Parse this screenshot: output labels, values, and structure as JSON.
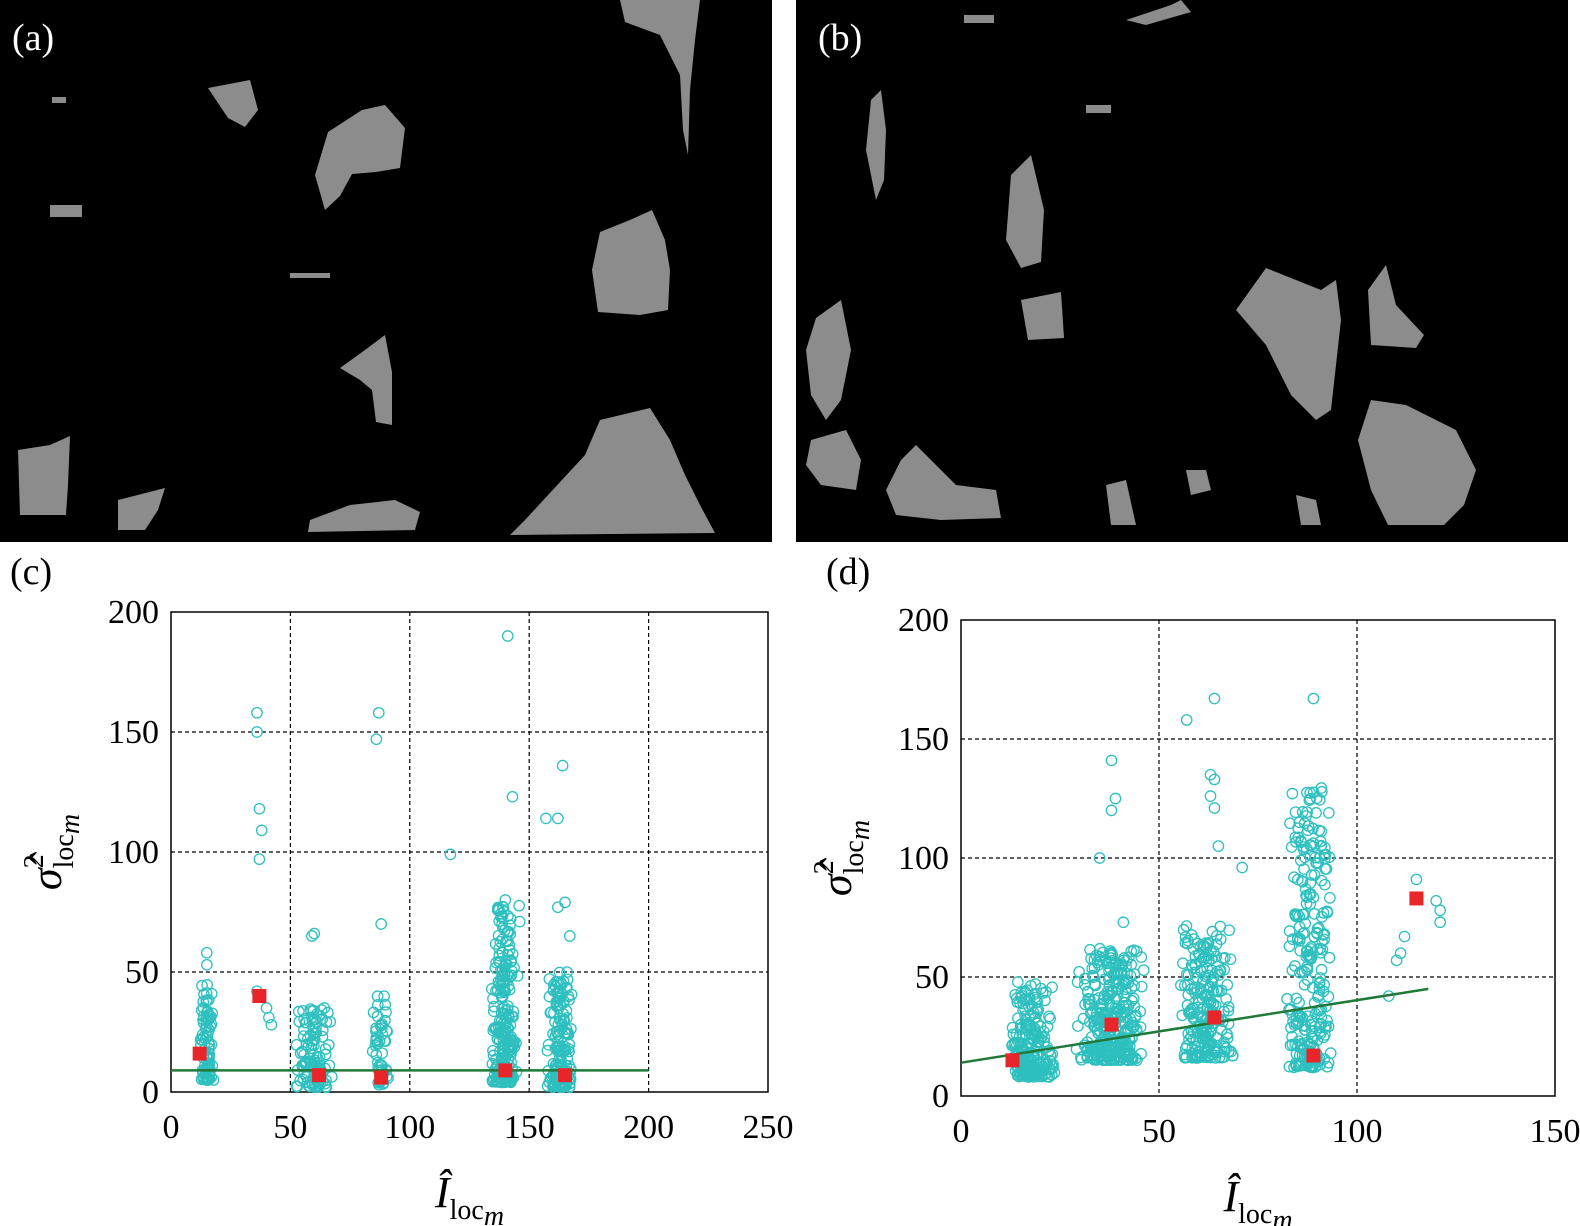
{
  "panels": {
    "a": {
      "label": "(a)"
    },
    "b": {
      "label": "(b)"
    },
    "c": {
      "label": "(c)"
    },
    "d": {
      "label": "(d)"
    }
  },
  "colors": {
    "background": "#000000",
    "region": "#8c8c8c",
    "points": "#2ebfbf",
    "means": "#e8262a",
    "fit": "#1f7a3a",
    "grid": "#000000"
  },
  "chart_data": [
    {
      "type": "scatter",
      "panel": "(c)",
      "xlabel_main": "Î",
      "xlabel_sub": "loc",
      "xlabel_subsub": "m",
      "ylabel_main": "σ̂",
      "ylabel_sup": "2",
      "ylabel_sub": "loc",
      "ylabel_subsub": "m",
      "xlim": [
        0,
        250
      ],
      "ylim": [
        0,
        200
      ],
      "xticks": [
        0,
        50,
        100,
        150,
        200,
        250
      ],
      "yticks": [
        0,
        50,
        100,
        150,
        200
      ],
      "grid": true,
      "clusters": [
        {
          "x_center": 15,
          "x_spread": 3,
          "y_min": 5,
          "y_max": 45,
          "count": 80
        },
        {
          "x_center": 60,
          "x_spread": 8,
          "y_min": 2,
          "y_max": 35,
          "count": 110
        },
        {
          "x_center": 88,
          "x_spread": 4,
          "y_min": 3,
          "y_max": 40,
          "count": 50
        },
        {
          "x_center": 140,
          "x_spread": 6,
          "y_min": 4,
          "y_max": 78,
          "count": 230
        },
        {
          "x_center": 163,
          "x_spread": 6,
          "y_min": 2,
          "y_max": 50,
          "count": 170
        }
      ],
      "outliers": [
        {
          "x": 15,
          "y": 58
        },
        {
          "x": 15,
          "y": 53
        },
        {
          "x": 36,
          "y": 158
        },
        {
          "x": 36,
          "y": 150
        },
        {
          "x": 37,
          "y": 118
        },
        {
          "x": 38,
          "y": 109
        },
        {
          "x": 37,
          "y": 97
        },
        {
          "x": 36,
          "y": 42
        },
        {
          "x": 40,
          "y": 35
        },
        {
          "x": 41,
          "y": 31
        },
        {
          "x": 42,
          "y": 28
        },
        {
          "x": 59,
          "y": 65
        },
        {
          "x": 60,
          "y": 66
        },
        {
          "x": 87,
          "y": 158
        },
        {
          "x": 86,
          "y": 147
        },
        {
          "x": 88,
          "y": 70
        },
        {
          "x": 117,
          "y": 99
        },
        {
          "x": 141,
          "y": 190
        },
        {
          "x": 143,
          "y": 123
        },
        {
          "x": 140,
          "y": 80
        },
        {
          "x": 146,
          "y": 71
        },
        {
          "x": 157,
          "y": 114
        },
        {
          "x": 162,
          "y": 114
        },
        {
          "x": 164,
          "y": 136
        },
        {
          "x": 162,
          "y": 77
        },
        {
          "x": 165,
          "y": 79
        },
        {
          "x": 167,
          "y": 65
        }
      ],
      "means": [
        {
          "x": 12,
          "y": 16
        },
        {
          "x": 37,
          "y": 40
        },
        {
          "x": 62,
          "y": 7
        },
        {
          "x": 88,
          "y": 6
        },
        {
          "x": 140,
          "y": 9
        },
        {
          "x": 165,
          "y": 7
        }
      ],
      "fit_line": {
        "x": [
          0,
          200
        ],
        "y": [
          9,
          9
        ]
      }
    },
    {
      "type": "scatter",
      "panel": "(d)",
      "xlabel_main": "Î",
      "xlabel_sub": "loc",
      "xlabel_subsub": "m",
      "ylabel_main": "σ̂",
      "ylabel_sup": "2",
      "ylabel_sub": "loc",
      "ylabel_subsub": "m",
      "xlim": [
        0,
        150
      ],
      "ylim": [
        0,
        200
      ],
      "xticks": [
        0,
        50,
        100,
        150
      ],
      "yticks": [
        0,
        50,
        100,
        150,
        200
      ],
      "grid": true,
      "clusters": [
        {
          "x_center": 18,
          "x_spread": 6,
          "y_min": 8,
          "y_max": 48,
          "count": 230
        },
        {
          "x_center": 38,
          "x_spread": 9,
          "y_min": 15,
          "y_max": 62,
          "count": 320
        },
        {
          "x_center": 62,
          "x_spread": 7,
          "y_min": 16,
          "y_max": 72,
          "count": 230
        },
        {
          "x_center": 88,
          "x_spread": 6,
          "y_min": 12,
          "y_max": 130,
          "count": 260
        }
      ],
      "outliers": [
        {
          "x": 35,
          "y": 100
        },
        {
          "x": 38,
          "y": 141
        },
        {
          "x": 39,
          "y": 125
        },
        {
          "x": 38,
          "y": 120
        },
        {
          "x": 41,
          "y": 73
        },
        {
          "x": 57,
          "y": 158
        },
        {
          "x": 64,
          "y": 167
        },
        {
          "x": 63,
          "y": 135
        },
        {
          "x": 64,
          "y": 133
        },
        {
          "x": 63,
          "y": 126
        },
        {
          "x": 64,
          "y": 121
        },
        {
          "x": 65,
          "y": 105
        },
        {
          "x": 71,
          "y": 96
        },
        {
          "x": 89,
          "y": 167
        },
        {
          "x": 108,
          "y": 42
        },
        {
          "x": 110,
          "y": 57
        },
        {
          "x": 111,
          "y": 60
        },
        {
          "x": 112,
          "y": 67
        },
        {
          "x": 115,
          "y": 91
        },
        {
          "x": 120,
          "y": 82
        },
        {
          "x": 121,
          "y": 78
        },
        {
          "x": 121,
          "y": 73
        }
      ],
      "means": [
        {
          "x": 13,
          "y": 15
        },
        {
          "x": 38,
          "y": 30
        },
        {
          "x": 64,
          "y": 33
        },
        {
          "x": 89,
          "y": 17
        },
        {
          "x": 115,
          "y": 83
        }
      ],
      "fit_line": {
        "x": [
          0,
          118
        ],
        "y": [
          14,
          45
        ]
      }
    }
  ]
}
